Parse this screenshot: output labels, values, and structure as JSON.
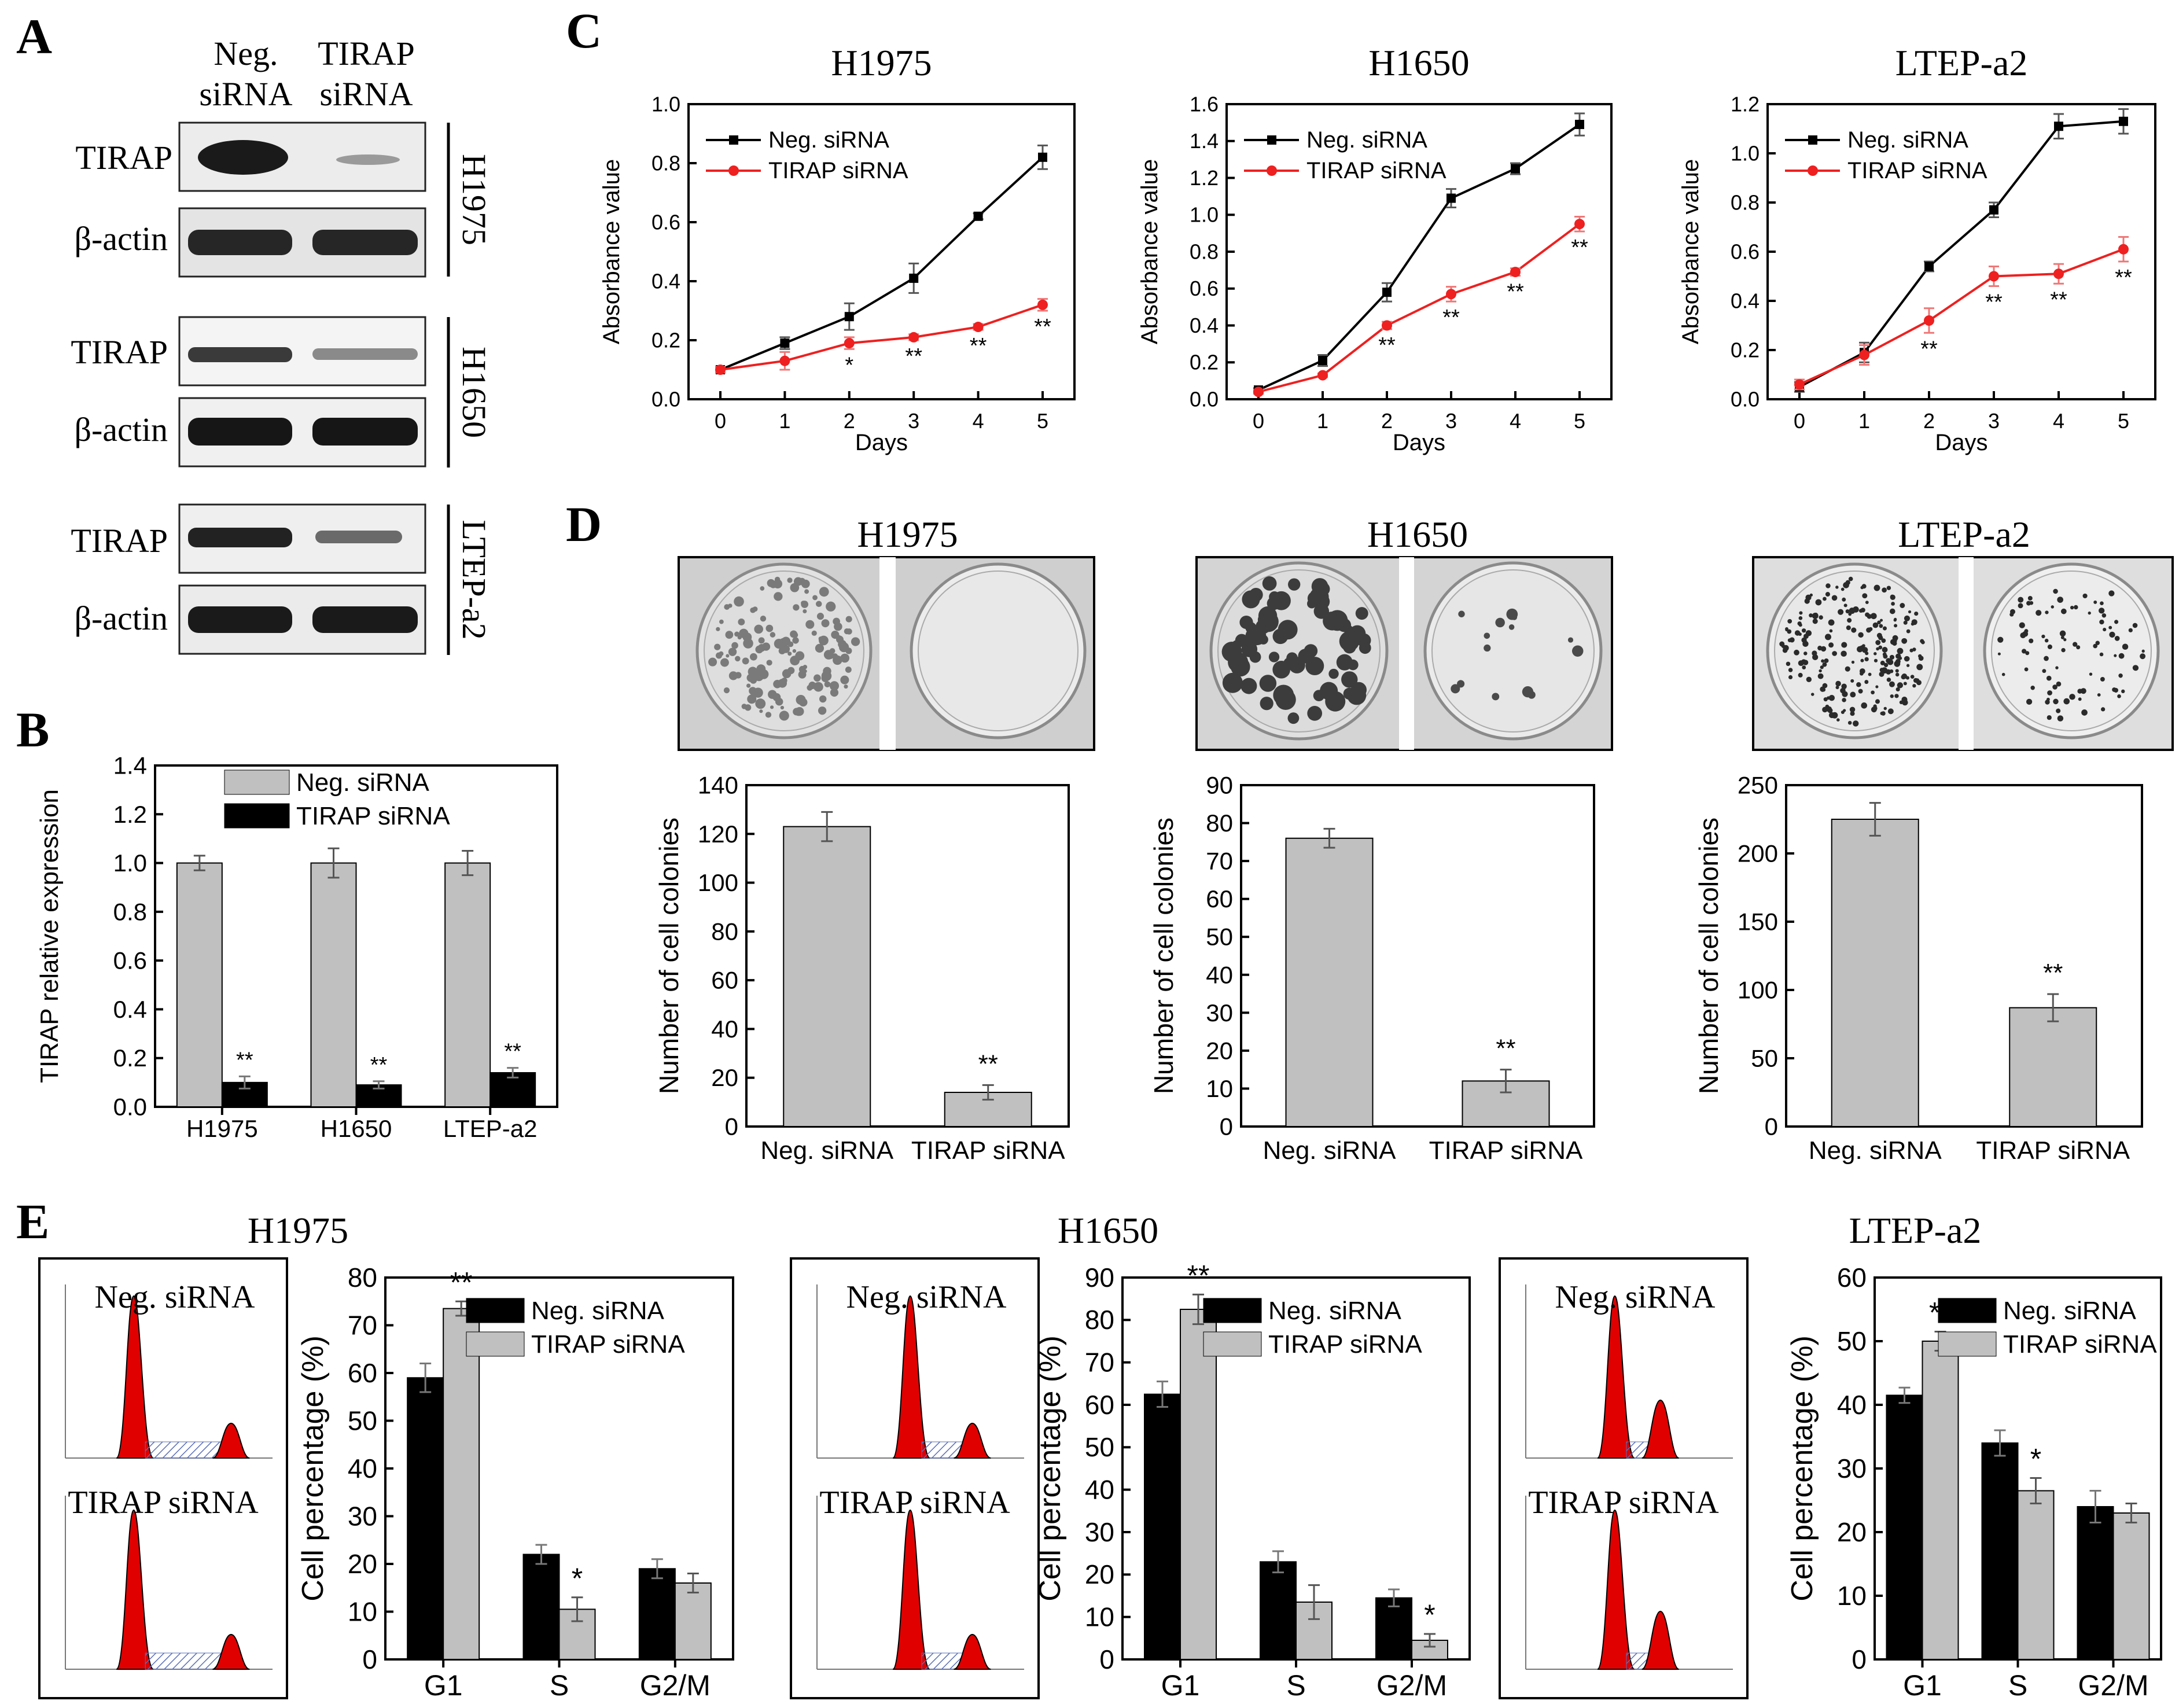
{
  "panel_letters": {
    "a": "A",
    "b": "B",
    "c": "C",
    "d": "D",
    "e": "E"
  },
  "panel_a": {
    "lane_neg": [
      "Neg.",
      "siRNA"
    ],
    "lane_tirap": [
      "TIRAP",
      "siRNA"
    ],
    "cell_lines": [
      "H1975",
      "H1650",
      "LTEP-a2"
    ],
    "protein_tirap": "TIRAP",
    "protein_actin": "β-actin"
  },
  "chart_data": [
    {
      "id": "B",
      "type": "bar",
      "title": "",
      "categories": [
        "H1975",
        "H1650",
        "LTEP-a2"
      ],
      "series": [
        {
          "name": "Neg. siRNA",
          "color": "#c0c0c0",
          "values": [
            1.0,
            1.0,
            1.0
          ],
          "errors": [
            0.03,
            0.06,
            0.05
          ]
        },
        {
          "name": "TIRAP siRNA",
          "color": "#000000",
          "values": [
            0.1,
            0.09,
            0.14
          ],
          "errors": [
            0.025,
            0.015,
            0.02
          ]
        }
      ],
      "significance": [
        "**",
        "**",
        "**"
      ],
      "xlabel": "",
      "ylabel": "TIRAP relative expression",
      "ylim": [
        0,
        1.4
      ],
      "yticks": [
        "0.0",
        "0.2",
        "0.4",
        "0.6",
        "0.8",
        "1.0",
        "1.2",
        "1.4"
      ],
      "legend": "top"
    },
    {
      "id": "C1",
      "type": "line",
      "title": "H1975",
      "x": [
        0,
        1,
        2,
        3,
        4,
        5
      ],
      "series": [
        {
          "name": "Neg. siRNA",
          "color": "#000000",
          "values": [
            0.1,
            0.19,
            0.28,
            0.41,
            0.62,
            0.82
          ],
          "errors": [
            0.01,
            0.02,
            0.045,
            0.05,
            0.01,
            0.04
          ]
        },
        {
          "name": "TIRAP siRNA",
          "color": "#ee2020",
          "values": [
            0.1,
            0.13,
            0.19,
            0.21,
            0.245,
            0.32
          ],
          "errors": [
            0.01,
            0.03,
            0.02,
            0.01,
            0.01,
            0.02
          ]
        }
      ],
      "significance": [
        "",
        "",
        "*",
        "**",
        "**",
        "**"
      ],
      "xlabel": "Days",
      "ylabel": "Absorbance value",
      "ylim": [
        0,
        1.0
      ],
      "yticks": [
        "0.0",
        "0.2",
        "0.4",
        "0.6",
        "0.8",
        "1.0"
      ],
      "xticks": [
        "0",
        "1",
        "2",
        "3",
        "4",
        "5"
      ],
      "legend": "top-left"
    },
    {
      "id": "C2",
      "type": "line",
      "title": "H1650",
      "x": [
        0,
        1,
        2,
        3,
        4,
        5
      ],
      "series": [
        {
          "name": "Neg. siRNA",
          "color": "#000000",
          "values": [
            0.05,
            0.21,
            0.58,
            1.09,
            1.25,
            1.49
          ],
          "errors": [
            0.01,
            0.03,
            0.05,
            0.05,
            0.03,
            0.06
          ]
        },
        {
          "name": "TIRAP siRNA",
          "color": "#ee2020",
          "values": [
            0.04,
            0.13,
            0.4,
            0.57,
            0.69,
            0.95
          ],
          "errors": [
            0.01,
            0.01,
            0.02,
            0.04,
            0.02,
            0.04
          ]
        }
      ],
      "significance": [
        "",
        "",
        "**",
        "**",
        "**",
        "**"
      ],
      "xlabel": "Days",
      "ylabel": "Absorbance value",
      "ylim": [
        0,
        1.6
      ],
      "yticks": [
        "0.0",
        "0.2",
        "0.4",
        "0.6",
        "0.8",
        "1.0",
        "1.2",
        "1.4",
        "1.6"
      ],
      "xticks": [
        "0",
        "1",
        "2",
        "3",
        "4",
        "5"
      ],
      "legend": "top-left"
    },
    {
      "id": "C3",
      "type": "line",
      "title": "LTEP-a2",
      "x": [
        0,
        1,
        2,
        3,
        4,
        5
      ],
      "series": [
        {
          "name": "Neg. siRNA",
          "color": "#000000",
          "values": [
            0.05,
            0.19,
            0.54,
            0.77,
            1.11,
            1.13
          ],
          "errors": [
            0.02,
            0.04,
            0.02,
            0.03,
            0.05,
            0.05
          ]
        },
        {
          "name": "TIRAP siRNA",
          "color": "#ee2020",
          "values": [
            0.06,
            0.18,
            0.32,
            0.5,
            0.51,
            0.61
          ],
          "errors": [
            0.02,
            0.04,
            0.05,
            0.04,
            0.04,
            0.05
          ]
        }
      ],
      "significance": [
        "",
        "",
        "**",
        "**",
        "**",
        "**"
      ],
      "xlabel": "Days",
      "ylabel": "Absorbance value",
      "ylim": [
        0,
        1.2
      ],
      "yticks": [
        "0.0",
        "0.2",
        "0.4",
        "0.6",
        "0.8",
        "1.0",
        "1.2"
      ],
      "xticks": [
        "0",
        "1",
        "2",
        "3",
        "4",
        "5"
      ],
      "legend": "top-left"
    },
    {
      "id": "D1",
      "type": "bar",
      "title": "H1975",
      "categories": [
        "Neg. siRNA",
        "TIRAP siRNA"
      ],
      "values": [
        123,
        14
      ],
      "errors": [
        6,
        3
      ],
      "significance": [
        "",
        "**"
      ],
      "xlabel": "",
      "ylabel": "Number of cell colonies",
      "ylim": [
        0,
        140
      ],
      "yticks": [
        "0",
        "20",
        "40",
        "60",
        "80",
        "100",
        "120",
        "140"
      ]
    },
    {
      "id": "D2",
      "type": "bar",
      "title": "H1650",
      "categories": [
        "Neg. siRNA",
        "TIRAP siRNA"
      ],
      "values": [
        76,
        12
      ],
      "errors": [
        2.5,
        3
      ],
      "significance": [
        "",
        "**"
      ],
      "xlabel": "",
      "ylabel": "Number of cell colonies",
      "ylim": [
        0,
        90
      ],
      "yticks": [
        "0",
        "10",
        "20",
        "30",
        "40",
        "50",
        "60",
        "70",
        "80",
        "90"
      ]
    },
    {
      "id": "D3",
      "type": "bar",
      "title": "LTEP-a2",
      "categories": [
        "Neg. siRNA",
        "TIRAP siRNA"
      ],
      "values": [
        225,
        87
      ],
      "errors": [
        12,
        10
      ],
      "significance": [
        "",
        "**"
      ],
      "xlabel": "",
      "ylabel": "Number of cell colonies",
      "ylim": [
        0,
        250
      ],
      "yticks": [
        "0",
        "50",
        "100",
        "150",
        "200",
        "250"
      ]
    },
    {
      "id": "E1",
      "type": "bar",
      "title": "H1975",
      "categories": [
        "G1",
        "S",
        "G2/M"
      ],
      "series": [
        {
          "name": "Neg. siRNA",
          "color": "#000000",
          "values": [
            59,
            22,
            19
          ],
          "errors": [
            3,
            2,
            2
          ]
        },
        {
          "name": "TIRAP siRNA",
          "color": "#c0c0c0",
          "values": [
            73.5,
            10.5,
            16
          ],
          "errors": [
            1.5,
            2.5,
            2
          ]
        }
      ],
      "significance": [
        "**",
        "*",
        ""
      ],
      "xlabel": "",
      "ylabel": "Cell percentage (%)",
      "ylim": [
        0,
        80
      ],
      "yticks": [
        "0",
        "10",
        "20",
        "30",
        "40",
        "50",
        "60",
        "70",
        "80"
      ],
      "legend": "top-right"
    },
    {
      "id": "E2",
      "type": "bar",
      "title": "H1650",
      "categories": [
        "G1",
        "S",
        "G2/M"
      ],
      "series": [
        {
          "name": "Neg. siRNA",
          "color": "#000000",
          "values": [
            62.5,
            23,
            14.5
          ],
          "errors": [
            3,
            2.5,
            2
          ]
        },
        {
          "name": "TIRAP siRNA",
          "color": "#c0c0c0",
          "values": [
            82.5,
            13.5,
            4.5
          ],
          "errors": [
            3.5,
            4,
            1.5
          ]
        }
      ],
      "significance": [
        "**",
        "",
        "*"
      ],
      "xlabel": "",
      "ylabel": "Cell percentage (%)",
      "ylim": [
        0,
        90
      ],
      "yticks": [
        "0",
        "10",
        "20",
        "30",
        "40",
        "50",
        "60",
        "70",
        "80",
        "90"
      ],
      "legend": "top-right"
    },
    {
      "id": "E3",
      "type": "bar",
      "title": "LTEP-a2",
      "categories": [
        "G1",
        "S",
        "G2/M"
      ],
      "series": [
        {
          "name": "Neg. siRNA",
          "color": "#000000",
          "values": [
            41.5,
            34,
            24
          ],
          "errors": [
            1.2,
            2,
            2.5
          ]
        },
        {
          "name": "TIRAP siRNA",
          "color": "#c0c0c0",
          "values": [
            50,
            26.5,
            23
          ],
          "errors": [
            1.5,
            2,
            1.5
          ]
        }
      ],
      "significance": [
        "**",
        "*",
        ""
      ],
      "xlabel": "",
      "ylabel": "Cell percentage (%)",
      "ylim": [
        0,
        60
      ],
      "yticks": [
        "0",
        "10",
        "20",
        "30",
        "40",
        "50",
        "60"
      ],
      "legend": "top-right"
    }
  ],
  "panel_e_flow": {
    "top_label": "Neg. siRNA",
    "bottom_label": "TIRAP siRNA"
  }
}
